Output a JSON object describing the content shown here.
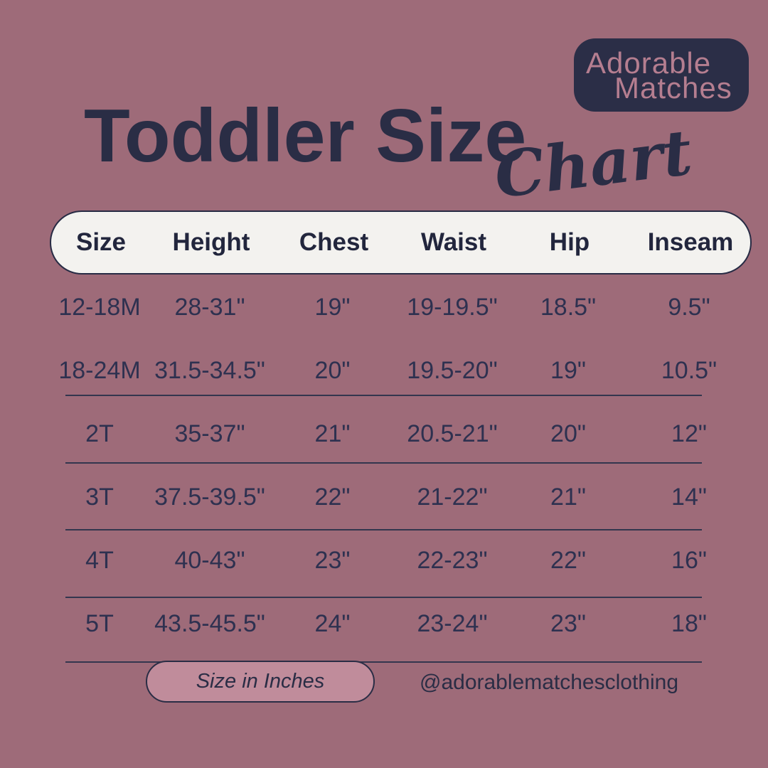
{
  "brand": {
    "line1": "Adorable",
    "line2": "Matches"
  },
  "title": {
    "main": "Toddler Size",
    "script": "Chart"
  },
  "chart_data": {
    "type": "table",
    "title": "Toddler Size Chart",
    "unit": "inches",
    "columns": [
      "Size",
      "Height",
      "Chest",
      "Waist",
      "Hip",
      "Inseam"
    ],
    "rows": [
      [
        "12-18M",
        "28-31\"",
        "19\"",
        "19-19.5\"",
        "18.5\"",
        "9.5\""
      ],
      [
        "18-24M",
        "31.5-34.5\"",
        "20\"",
        "19.5-20\"",
        "19\"",
        "10.5\""
      ],
      [
        "2T",
        "35-37\"",
        "21\"",
        "20.5-21\"",
        "20\"",
        "12\""
      ],
      [
        "3T",
        "37.5-39.5\"",
        "22\"",
        "21-22\"",
        "21\"",
        "14\""
      ],
      [
        "4T",
        "40-43\"",
        "23\"",
        "22-23\"",
        "22\"",
        "16\""
      ],
      [
        "5T",
        "43.5-45.5\"",
        "24\"",
        "23-24\"",
        "23\"",
        "18\""
      ]
    ]
  },
  "footer": {
    "unit_label": "Size in Inches",
    "handle": "@adorablematchesclothing"
  },
  "colors": {
    "background": "#9e6b79",
    "navy": "#2a2d45",
    "header_bg": "#f3f2ef",
    "unit_badge_bg": "#c08c9b",
    "brand_text": "#b57e90"
  }
}
